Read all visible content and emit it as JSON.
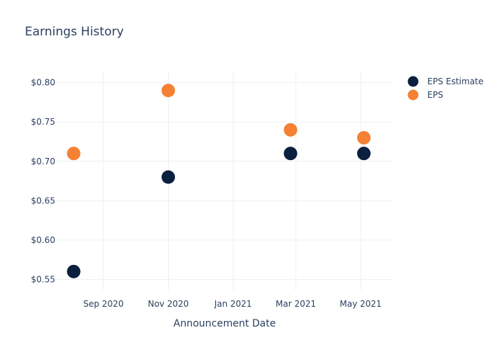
{
  "chart_data": {
    "type": "scatter",
    "title": "Earnings History",
    "xlabel": "Announcement Date",
    "ylabel": "",
    "x_ticks": [
      {
        "date": "2020-09-01",
        "label": "Sep 2020"
      },
      {
        "date": "2020-11-01",
        "label": "Nov 2020"
      },
      {
        "date": "2021-01-01",
        "label": "Jan 2021"
      },
      {
        "date": "2021-03-01",
        "label": "Mar 2021"
      },
      {
        "date": "2021-05-01",
        "label": "May 2021"
      }
    ],
    "y_ticks": [
      {
        "value": 0.55,
        "label": "$0.55"
      },
      {
        "value": 0.6,
        "label": "$0.60"
      },
      {
        "value": 0.65,
        "label": "$0.65"
      },
      {
        "value": 0.7,
        "label": "$0.70"
      },
      {
        "value": 0.75,
        "label": "$0.75"
      },
      {
        "value": 0.8,
        "label": "$0.80"
      }
    ],
    "xlim": [
      "2020-07-19",
      "2021-05-31"
    ],
    "ylim": [
      0.536,
      0.815
    ],
    "grid": true,
    "legend_position": "top-right",
    "series": [
      {
        "name": "EPS Estimate",
        "color": "#0b1f3f",
        "points": [
          {
            "x": "2020-08-04",
            "y": 0.56
          },
          {
            "x": "2020-11-01",
            "y": 0.68
          },
          {
            "x": "2021-02-24",
            "y": 0.71
          },
          {
            "x": "2021-05-04",
            "y": 0.71
          }
        ]
      },
      {
        "name": "EPS",
        "color": "#f58134",
        "points": [
          {
            "x": "2020-08-04",
            "y": 0.71
          },
          {
            "x": "2020-11-01",
            "y": 0.79
          },
          {
            "x": "2021-02-24",
            "y": 0.74
          },
          {
            "x": "2021-05-04",
            "y": 0.73
          }
        ]
      }
    ]
  }
}
